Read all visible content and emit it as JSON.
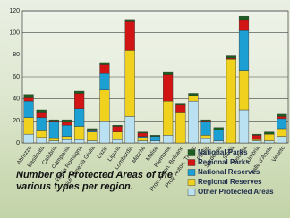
{
  "chart_data": {
    "type": "stacked-bar",
    "caption": "Number of Protected Areas of the various types per region.",
    "categories": [
      "Abruzzo",
      "Basilicata",
      "Calabria",
      "Campania",
      "Emilia Romagna",
      "Friuli Venezia Giulia",
      "Lazio",
      "Liguria",
      "Lombardia",
      "Marche",
      "Molise",
      "Piemonte",
      "Prov. Auton. Bolzano",
      "Prov. Auton. Trento",
      "Puglia",
      "Sardegna",
      "Sicilia",
      "Toscana",
      "Umbria",
      "Valle d'Aosta",
      "Veneto"
    ],
    "series": [
      {
        "name": "National Parks",
        "color": "#1b5e20",
        "values": [
          3,
          2,
          1,
          2,
          2,
          1,
          2,
          1,
          2,
          1,
          1,
          2,
          1,
          2,
          1,
          2,
          2,
          3,
          1,
          2,
          2
        ]
      },
      {
        "name": "Regional Parks",
        "color": "#d11414",
        "values": [
          3,
          5,
          1,
          3,
          14,
          1,
          8,
          5,
          26,
          3,
          0,
          24,
          7,
          0,
          1,
          0,
          1,
          10,
          4,
          0,
          2
        ]
      },
      {
        "name": "National Reserves",
        "color": "#1c9fd2",
        "values": [
          15,
          12,
          15,
          10,
          16,
          1,
          15,
          0,
          0,
          1,
          4,
          0,
          0,
          0,
          12,
          10,
          0,
          36,
          0,
          0,
          9
        ]
      },
      {
        "name": "Regional Reserves",
        "color": "#f0d21e",
        "values": [
          15,
          6,
          2,
          3,
          12,
          8,
          28,
          7,
          60,
          3,
          0,
          31,
          28,
          5,
          3,
          0,
          76,
          36,
          1,
          6,
          7
        ]
      },
      {
        "name": "Other Protected Areas",
        "color": "#b9e1f2",
        "values": [
          8,
          5,
          2,
          3,
          3,
          2,
          20,
          3,
          24,
          2,
          2,
          7,
          0,
          38,
          4,
          2,
          0,
          30,
          2,
          2,
          6
        ]
      }
    ],
    "ylim": [
      0,
      120
    ],
    "yticks": [
      0,
      20,
      40,
      60,
      80,
      100,
      120
    ],
    "grid": true
  }
}
